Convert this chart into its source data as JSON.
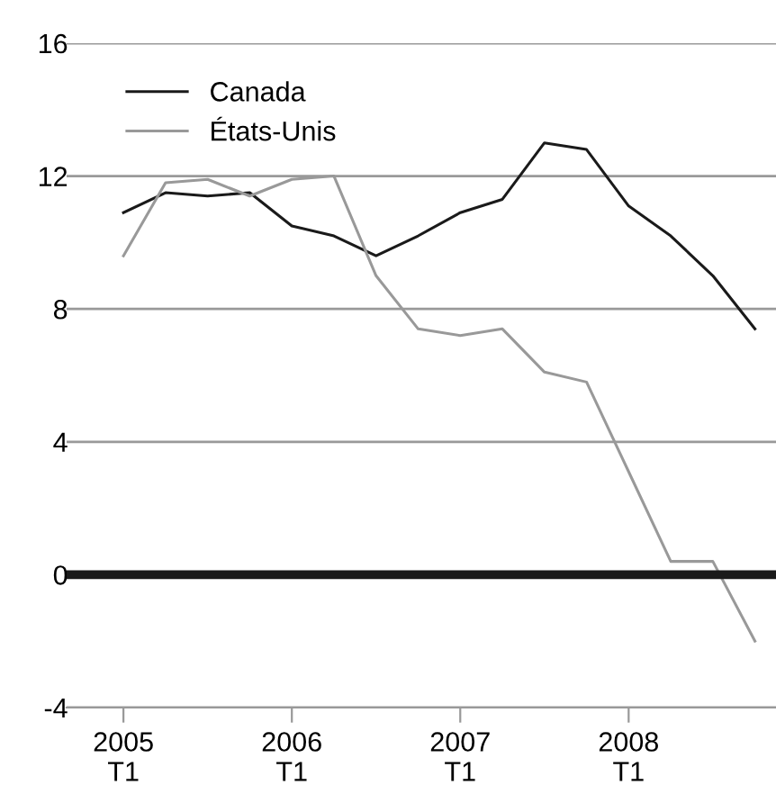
{
  "chart_data": {
    "type": "line",
    "categories": [
      "2005\nT1",
      null,
      null,
      null,
      "2006\nT1",
      null,
      null,
      null,
      "2007\nT1",
      null,
      null,
      null,
      "2008\nT1",
      null,
      null,
      null
    ],
    "series": [
      {
        "name": "Canada",
        "color": "#1a1a1a",
        "values": [
          10.9,
          11.5,
          11.4,
          11.5,
          10.5,
          10.2,
          9.6,
          10.2,
          10.9,
          11.3,
          13.0,
          12.8,
          11.1,
          10.2,
          9.0,
          7.4
        ]
      },
      {
        "name": "États-Unis",
        "color": "#999999",
        "values": [
          9.6,
          11.8,
          11.9,
          11.4,
          11.9,
          12.0,
          9.0,
          7.4,
          7.2,
          7.4,
          6.1,
          5.8,
          3.1,
          0.4,
          0.4,
          -2.0
        ]
      }
    ],
    "ylim": [
      -4,
      16
    ],
    "yticks": [
      -4,
      0,
      4,
      8,
      12,
      16
    ],
    "grid": "y",
    "legend": "top left",
    "marker": "none",
    "line_style": "solid",
    "ref_lines": [
      {
        "axis": "y",
        "value": 0,
        "color": "#1a1a1a"
      }
    ]
  }
}
